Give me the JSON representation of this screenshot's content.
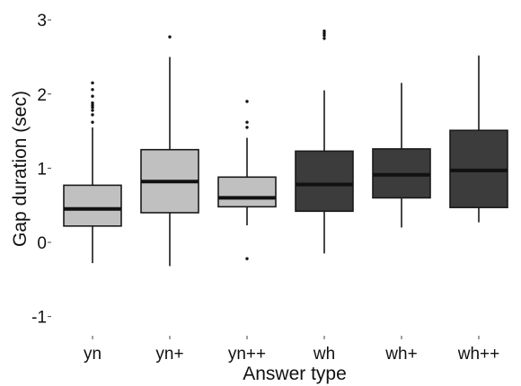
{
  "chart_data": {
    "type": "boxplot",
    "xlabel": "Answer type",
    "ylabel": "Gap duration (sec)",
    "ylim": [
      -1.15,
      3.05
    ],
    "yticks": [
      -1,
      0,
      1,
      2,
      3
    ],
    "grid": false,
    "legend": "none",
    "categories": [
      "yn",
      "yn+",
      "yn++",
      "wh",
      "wh+",
      "wh++"
    ],
    "boxes": [
      {
        "category": "yn",
        "min": -0.28,
        "q1": 0.22,
        "median": 0.45,
        "q3": 0.77,
        "max": 1.55,
        "outliers": [
          1.62,
          1.72,
          1.78,
          1.82,
          1.85,
          1.88,
          1.97,
          2.06,
          2.15
        ],
        "color": "#c0c0c0"
      },
      {
        "category": "yn+",
        "min": -0.32,
        "q1": 0.4,
        "median": 0.82,
        "q3": 1.25,
        "max": 2.5,
        "outliers": [
          2.77
        ],
        "color": "#c0c0c0"
      },
      {
        "category": "yn++",
        "min": 0.23,
        "q1": 0.48,
        "median": 0.6,
        "q3": 0.88,
        "max": 1.41,
        "outliers": [
          -0.22,
          1.55,
          1.62,
          1.9
        ],
        "color": "#c0c0c0"
      },
      {
        "category": "wh",
        "min": -0.15,
        "q1": 0.42,
        "median": 0.78,
        "q3": 1.23,
        "max": 2.05,
        "outliers": [
          2.75,
          2.79,
          2.82,
          2.85
        ],
        "color": "#3c3c3c"
      },
      {
        "category": "wh+",
        "min": 0.2,
        "q1": 0.6,
        "median": 0.91,
        "q3": 1.26,
        "max": 2.15,
        "outliers": [],
        "color": "#3c3c3c"
      },
      {
        "category": "wh++",
        "min": 0.27,
        "q1": 0.47,
        "median": 0.97,
        "q3": 1.51,
        "max": 2.52,
        "outliers": [],
        "color": "#3c3c3c"
      }
    ]
  }
}
